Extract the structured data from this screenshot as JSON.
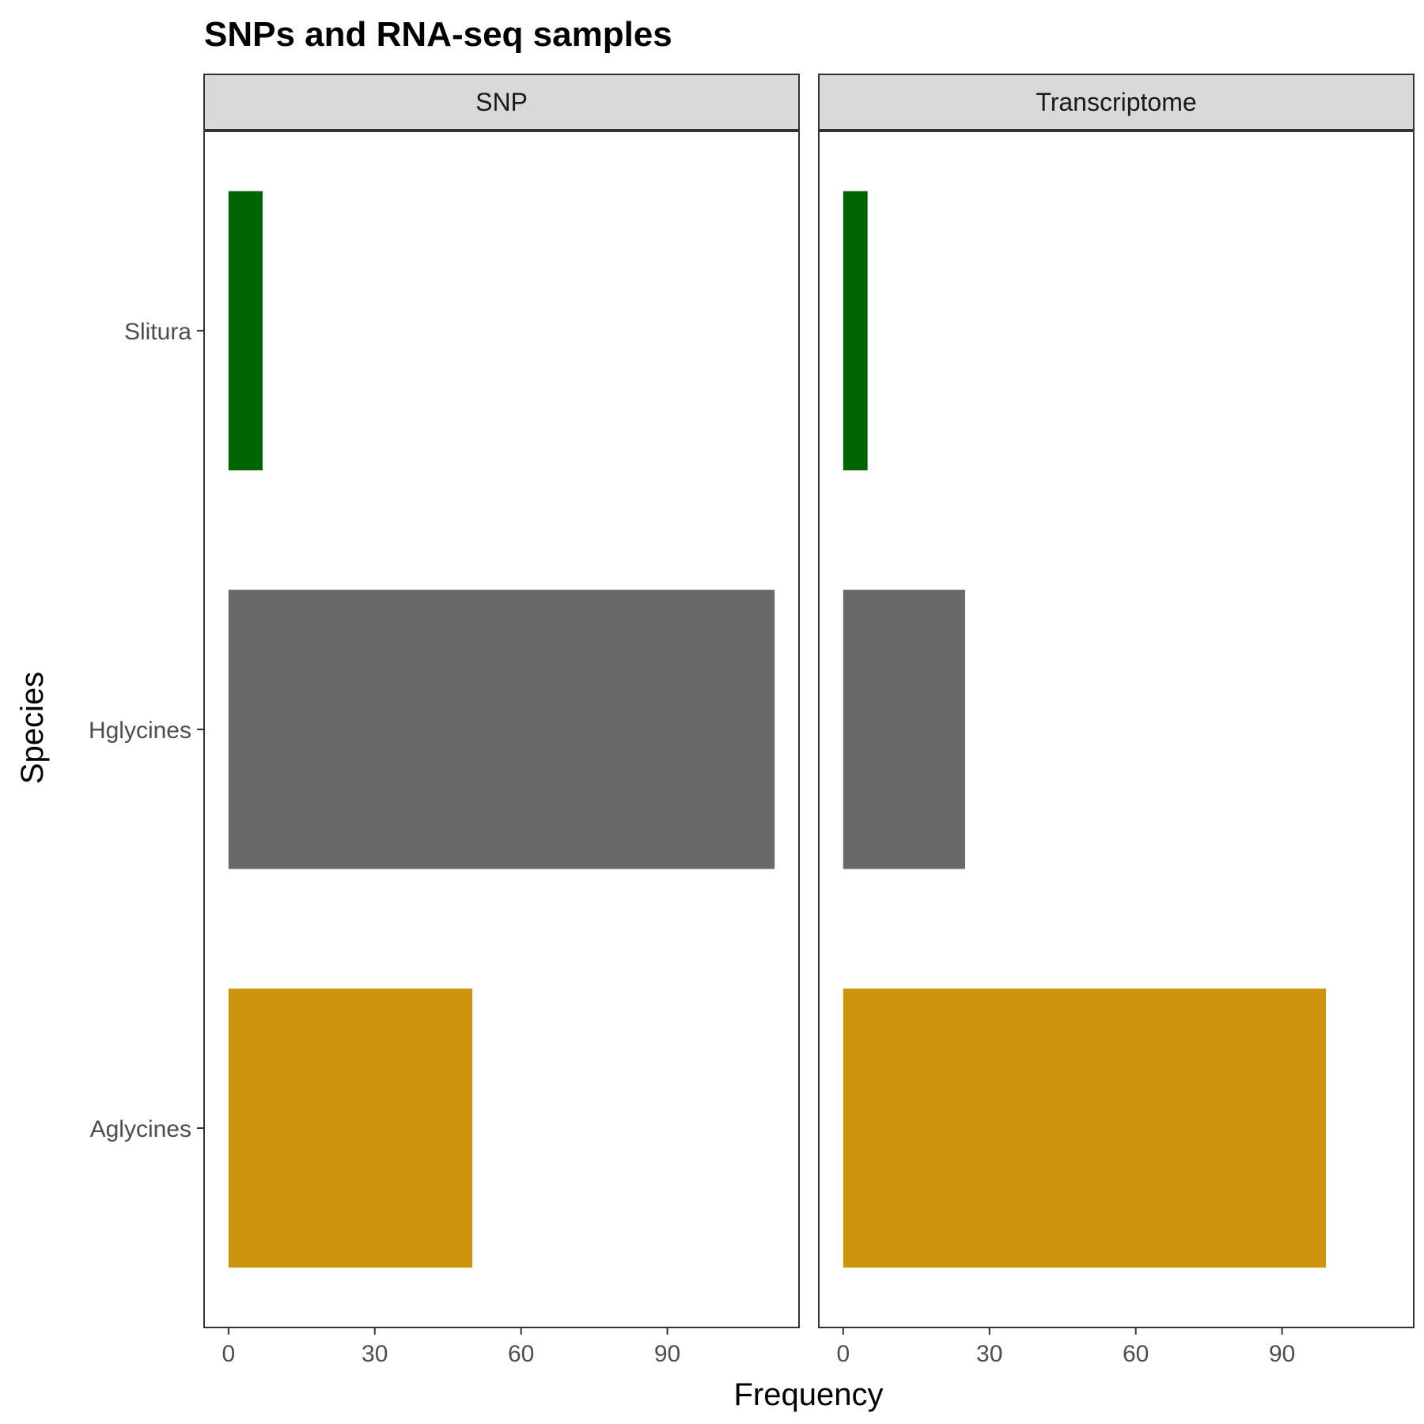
{
  "chart_data": {
    "type": "bar",
    "orientation": "horizontal",
    "title": "SNPs and RNA-seq samples",
    "xlabel": "Frequency",
    "ylabel": "Species",
    "categories": [
      "Aglycines",
      "Hglycines",
      "Slitura"
    ],
    "colors": {
      "Aglycines": "#cd950c",
      "Hglycines": "#696969",
      "Slitura": "#006400"
    },
    "xlim": [
      -5,
      117
    ],
    "xticks": [
      0,
      30,
      60,
      90
    ],
    "grid": false,
    "legend": "none",
    "panels": [
      {
        "label": "SNP",
        "values": [
          50,
          112,
          7
        ]
      },
      {
        "label": "Transcriptome",
        "values": [
          99,
          25,
          5
        ]
      }
    ]
  }
}
